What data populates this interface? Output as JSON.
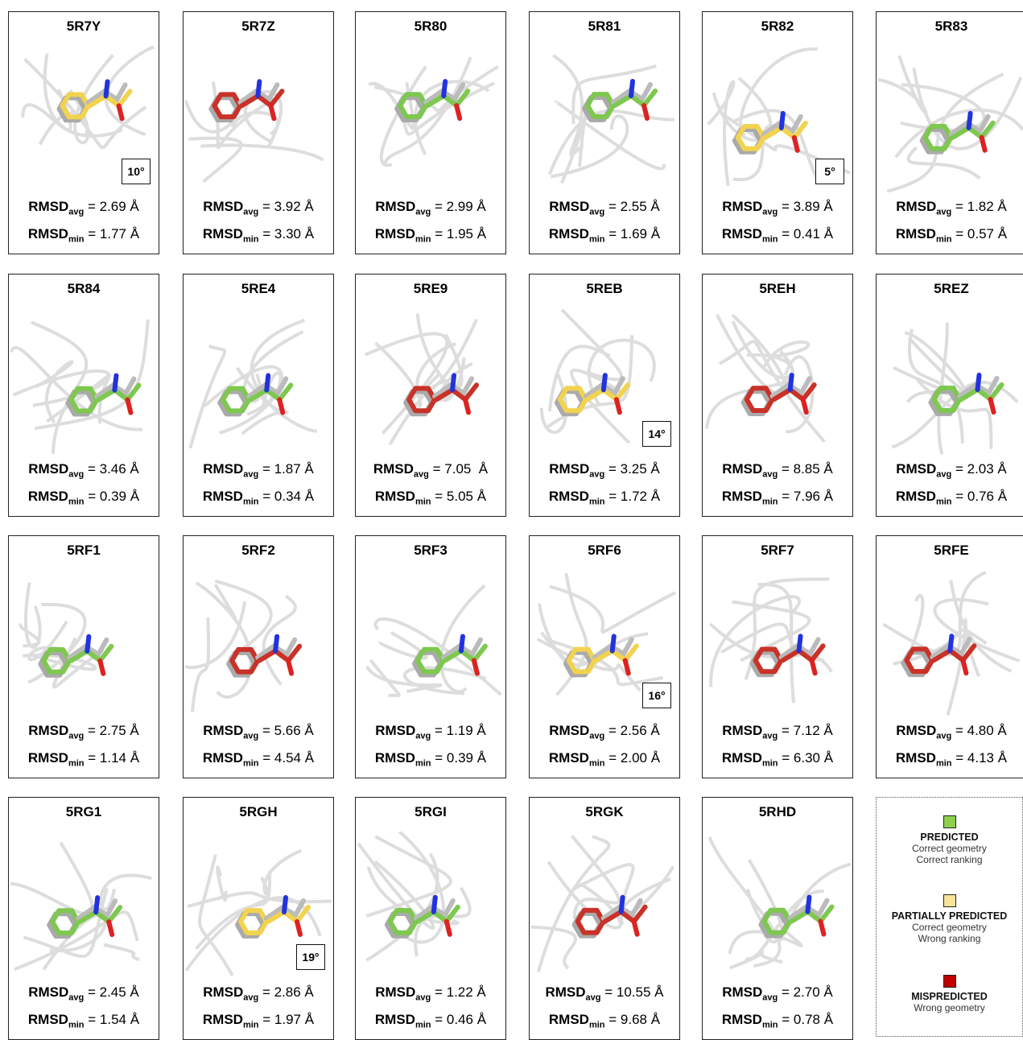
{
  "labels": {
    "rmsd": "RMSD",
    "avg": "avg",
    "min": "min"
  },
  "panels": [
    {
      "id": "5R7Y",
      "avg": "= 2.69 Å",
      "min": "= 1.77 Å",
      "angle": "10°",
      "color": "#f2d34f"
    },
    {
      "id": "5R7Z",
      "avg": "= 3.92 Å",
      "min": "= 3.30 Å",
      "color": "#c83228"
    },
    {
      "id": "5R80",
      "avg": "= 2.99 Å",
      "min": "= 1.95 Å",
      "color": "#7ec850"
    },
    {
      "id": "5R81",
      "avg": "= 2.55 Å",
      "min": "= 1.69 Å",
      "color": "#7ec850"
    },
    {
      "id": "5R82",
      "avg": "= 3.89 Å",
      "min": "= 0.41 Å",
      "angle": "5°",
      "color": "#f2d34f"
    },
    {
      "id": "5R83",
      "avg": "= 1.82 Å",
      "min": "= 0.57 Å",
      "color": "#7ec850"
    },
    {
      "id": "5R84",
      "avg": "= 3.46 Å",
      "min": "= 0.39 Å",
      "color": "#7ec850"
    },
    {
      "id": "5RE4",
      "avg": "= 1.87 Å",
      "min": "= 0.34 Å",
      "color": "#7ec850"
    },
    {
      "id": "5RE9",
      "avg": "= 7.05  Å",
      "min": "= 5.05 Å",
      "color": "#c83228"
    },
    {
      "id": "5REB",
      "avg": "= 3.25 Å",
      "min": "= 1.72 Å",
      "angle": "14°",
      "color": "#f2d34f"
    },
    {
      "id": "5REH",
      "avg": "= 8.85 Å",
      "min": "= 7.96 Å",
      "color": "#c83228"
    },
    {
      "id": "5REZ",
      "avg": "= 2.03 Å",
      "min": "= 0.76 Å",
      "color": "#7ec850"
    },
    {
      "id": "5RF1",
      "avg": "= 2.75 Å",
      "min": "= 1.14 Å",
      "color": "#7ec850"
    },
    {
      "id": "5RF2",
      "avg": "= 5.66 Å",
      "min": "= 4.54 Å",
      "color": "#c83228"
    },
    {
      "id": "5RF3",
      "avg": "= 1.19 Å",
      "min": "= 0.39 Å",
      "color": "#7ec850"
    },
    {
      "id": "5RF6",
      "avg": "= 2.56 Å",
      "min": "= 2.00 Å",
      "angle": "16°",
      "color": "#f2d34f"
    },
    {
      "id": "5RF7",
      "avg": "= 7.12 Å",
      "min": "= 6.30 Å",
      "color": "#c83228"
    },
    {
      "id": "5RFE",
      "avg": "= 4.80 Å",
      "min": "= 4.13 Å",
      "color": "#c83228"
    },
    {
      "id": "5RG1",
      "avg": "= 2.45 Å",
      "min": "= 1.54 Å",
      "color": "#7ec850"
    },
    {
      "id": "5RGH",
      "avg": "= 2.86 Å",
      "min": "= 1.97 Å",
      "angle": "19°",
      "color": "#f2d34f"
    },
    {
      "id": "5RGI",
      "avg": "= 1.22 Å",
      "min": "= 0.46 Å",
      "color": "#7ec850"
    },
    {
      "id": "5RGK",
      "avg": "= 10.55 Å",
      "min": "= 9.68 Å",
      "color": "#c83228"
    },
    {
      "id": "5RHD",
      "avg": "= 2.70 Å",
      "min": "= 0.78 Å",
      "color": "#7ec850"
    }
  ],
  "legend": [
    {
      "title": "PREDICTED",
      "lines": [
        "Correct geometry",
        "Correct ranking"
      ],
      "color": "#8fd14f"
    },
    {
      "title": "PARTIALLY PREDICTED",
      "lines": [
        "Correct geometry",
        "Wrong ranking"
      ],
      "color": "#f7e49a"
    },
    {
      "title": "MISPREDICTED",
      "lines": [
        "Wrong geometry"
      ],
      "color": "#c00000"
    }
  ]
}
